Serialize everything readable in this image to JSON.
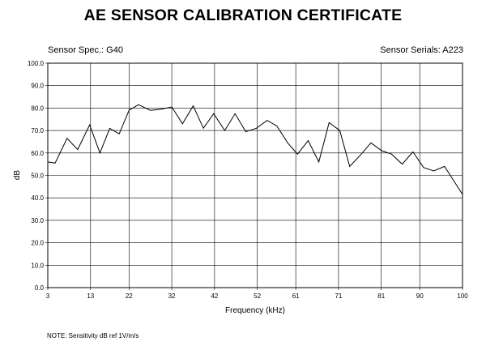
{
  "header": {
    "title": "AE SENSOR CALIBRATION CERTIFICATE",
    "sensor_spec": "Sensor Spec.: G40",
    "sensor_serials": "Sensor Serials: A223"
  },
  "note": "NOTE:  Sensitivity dB ref 1V/m/s",
  "chart_data": {
    "type": "line",
    "title": "AE SENSOR CALIBRATION CERTIFICATE",
    "xlabel": "Frequency (kHz)",
    "ylabel": "dB",
    "xlim": [
      3,
      100
    ],
    "ylim": [
      0,
      100
    ],
    "x_ticks": [
      3,
      13,
      22,
      32,
      42,
      52,
      61,
      71,
      81,
      90,
      100
    ],
    "y_ticks": [
      "0.0",
      "10.0",
      "20.0",
      "30.0",
      "40.0",
      "50.0",
      "60.0",
      "70.0",
      "80.0",
      "90.0",
      "100.0"
    ],
    "grid": true,
    "series": [
      {
        "color": "#000000",
        "x": [
          3,
          4.7,
          7.5,
          10,
          12.8,
          15.2,
          17.5,
          19.7,
          22,
          24.2,
          27,
          29.5,
          32,
          34.5,
          37,
          39.4,
          41.8,
          44.4,
          46.8,
          49.3,
          51.8,
          54.3,
          56.6,
          59.1,
          61.4,
          63.9,
          66.4,
          68.8,
          71.3,
          73.6,
          76.1,
          78.6,
          81.1,
          83.4,
          85.9,
          88.4,
          90.9,
          93.3,
          95.8,
          100
        ],
        "y": [
          56,
          55.5,
          66.5,
          61.5,
          72.5,
          60,
          71,
          68.5,
          79,
          81.5,
          79,
          79.5,
          80.5,
          73,
          81,
          71,
          77.5,
          70,
          77.5,
          69.5,
          71,
          74.5,
          72,
          64.5,
          59.5,
          65.5,
          56,
          73.5,
          70,
          54,
          59,
          64.5,
          61,
          59.5,
          55,
          60.5,
          53.5,
          52,
          54,
          41.5
        ]
      }
    ]
  }
}
